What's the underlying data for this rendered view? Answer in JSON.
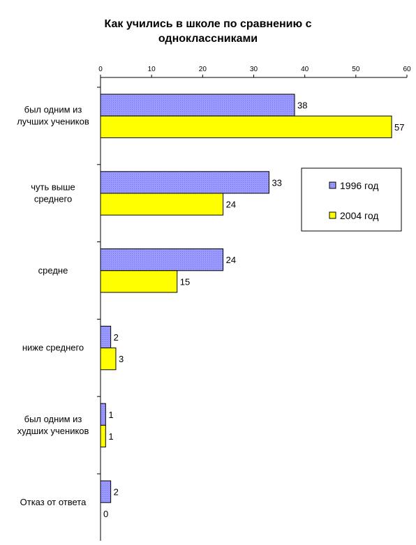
{
  "chart_data": {
    "type": "bar",
    "orientation": "horizontal",
    "title": "Как учились в школе по сравнению с одноклассниками",
    "title_lines": [
      "Как учились в школе по сравнению с",
      "одноклассниками"
    ],
    "categories": [
      [
        "был одним из",
        "лучших учеников"
      ],
      [
        "чуть выше",
        "среднего"
      ],
      [
        "средне"
      ],
      [
        "ниже среднего"
      ],
      [
        "был одним из",
        "худших учеников"
      ],
      [
        "Отказ от ответа"
      ]
    ],
    "series": [
      {
        "name": "1996 год",
        "values": [
          38,
          33,
          24,
          2,
          1,
          2
        ],
        "color": "#9999ff"
      },
      {
        "name": "2004 год",
        "values": [
          57,
          24,
          15,
          3,
          1,
          0
        ],
        "color": "#ffff00"
      }
    ],
    "xlim": [
      0,
      60
    ],
    "xticks": [
      0,
      10,
      20,
      30,
      40,
      50,
      60
    ],
    "xaxis_position": "top",
    "grid": false,
    "legend_position": "right",
    "show_data_labels": true
  }
}
